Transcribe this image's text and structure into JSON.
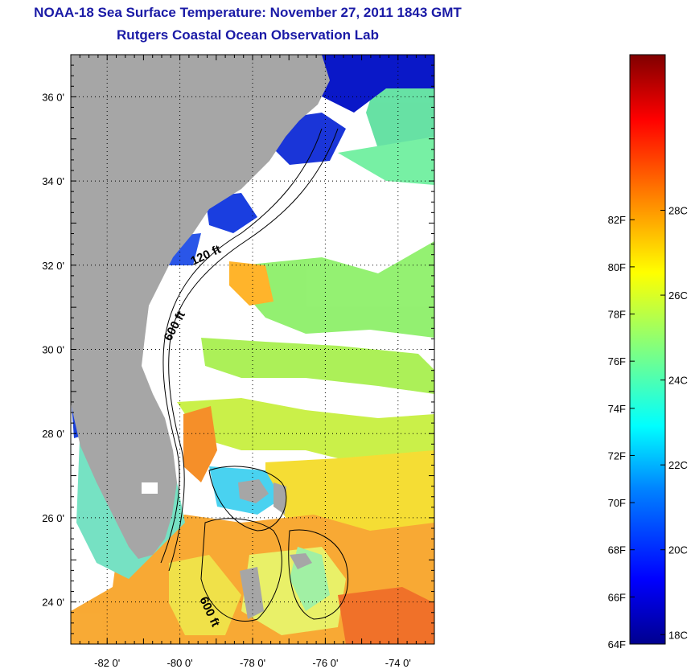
{
  "title": "NOAA-18 Sea Surface Temperature:  November 27, 2011 1843 GMT",
  "subtitle": "Rutgers Coastal Ocean Observation Lab",
  "map": {
    "lon_range": [
      -83,
      -73
    ],
    "lat_range": [
      23,
      37
    ],
    "x_ticks": [
      {
        "lon": -82,
        "label": "-82 0'"
      },
      {
        "lon": -80,
        "label": "-80 0'"
      },
      {
        "lon": -78,
        "label": "-78 0'"
      },
      {
        "lon": -76,
        "label": "-76 0'"
      },
      {
        "lon": -74,
        "label": "-74 0'"
      }
    ],
    "y_ticks": [
      {
        "lat": 24,
        "label": "24 0'"
      },
      {
        "lat": 26,
        "label": "26 0'"
      },
      {
        "lat": 28,
        "label": "28 0'"
      },
      {
        "lat": 30,
        "label": "30 0'"
      },
      {
        "lat": 32,
        "label": "32 0'"
      },
      {
        "lat": 34,
        "label": "34 0'"
      },
      {
        "lat": 36,
        "label": "36 0'"
      }
    ],
    "grid": "dotted",
    "contour_labels": [
      "120 ft",
      "600 ft",
      "600 ft"
    ],
    "colors": {
      "land": "#a6a6a6",
      "ocean_cloud": "#ffffff"
    }
  },
  "colorbar": {
    "fahrenheit_labels": [
      "64F",
      "66F",
      "68F",
      "70F",
      "72F",
      "74F",
      "76F",
      "78F",
      "80F",
      "82F"
    ],
    "celsius_labels": [
      "18C",
      "20C",
      "22C",
      "24C",
      "26C",
      "28C"
    ],
    "range_f": [
      64,
      89
    ],
    "colormap": [
      "#00008f",
      "#0000ff",
      "#0080ff",
      "#00ffff",
      "#80ff80",
      "#ffff00",
      "#ff8000",
      "#ff0000",
      "#800000"
    ]
  }
}
